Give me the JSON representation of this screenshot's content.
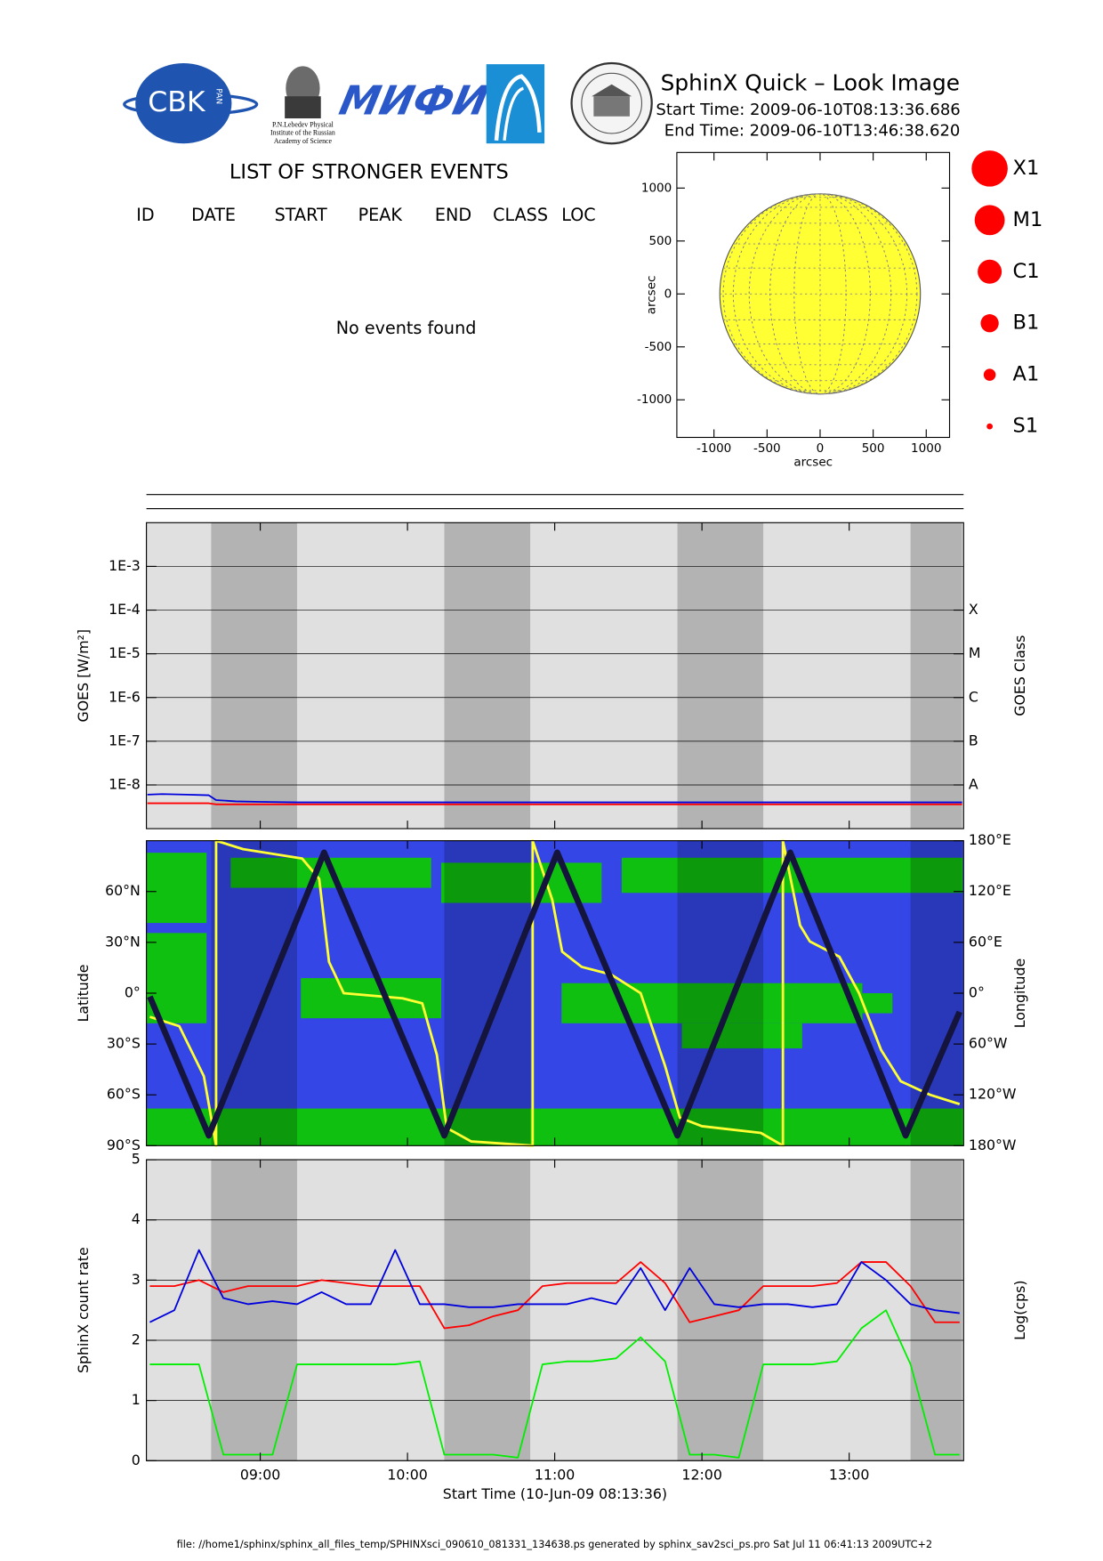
{
  "header": {
    "title": "SphinX Quick – Look Image",
    "start_time": "Start Time: 2009-06-10T08:13:36.686",
    "end_time": "End Time: 2009-06-10T13:46:38.620"
  },
  "logos": {
    "cbk": "CBK",
    "pan": "PAN",
    "lebedev": [
      "P.N.Lebedev Physical",
      "Institute of the Russian",
      "Academy of Science"
    ],
    "mifi": "МИФИ"
  },
  "events": {
    "title": "LIST OF STRONGER EVENTS",
    "columns": [
      "ID",
      "DATE",
      "START",
      "PEAK",
      "END",
      "CLASS",
      "LOC"
    ],
    "message": "No events found"
  },
  "footer": "file: //home1/sphinx/sphinx_all_files_temp/SPHINXsci_090610_081331_134638.ps generated by sphinx_sav2sci_ps.pro Sat Jul 11 06:41:13 2009UTC+2",
  "night": [
    [
      "08:40",
      "09:15"
    ],
    [
      "10:15",
      "10:50"
    ],
    [
      "11:50",
      "12:25"
    ],
    [
      "13:25",
      "13:46"
    ]
  ],
  "chart_data": [
    {
      "type": "disk",
      "radius": 945,
      "color": "#ffff33",
      "xlim": [
        -1350,
        1220
      ],
      "ylim": [
        -1355,
        1336
      ],
      "xticks": [
        -1000,
        -500,
        0,
        500,
        1000
      ],
      "yticks": [
        -1000,
        -500,
        0,
        500,
        1000
      ],
      "xlabel": "arcsec",
      "ylabel": "arcsec"
    },
    {
      "type": "legend",
      "categories": [
        "X1",
        "M1",
        "C1",
        "B1",
        "A1",
        "S1"
      ],
      "color": "#ff0000"
    },
    {
      "type": "line",
      "log": true,
      "background": "#e0e0e0",
      "grid": true,
      "xlim": [
        "08:13:36",
        "13:46:38"
      ],
      "xticks": [
        "09:00",
        "10:00",
        "11:00",
        "12:00",
        "13:00"
      ],
      "ylim": [
        1e-09,
        0.01
      ],
      "yticks": [
        {
          "value": 1e-08,
          "label": "1E-8"
        },
        {
          "value": 1e-07,
          "label": "1E-7"
        },
        {
          "value": 1e-06,
          "label": "1E-6"
        },
        {
          "value": 1e-05,
          "label": "1E-5"
        },
        {
          "value": 0.0001,
          "label": "1E-4"
        },
        {
          "value": 0.001,
          "label": "1E-3"
        }
      ],
      "y2lim": [
        1e-09,
        0.01
      ],
      "y2ticks": [
        {
          "value": 1e-08,
          "label": "A"
        },
        {
          "value": 1e-07,
          "label": "B"
        },
        {
          "value": 1e-06,
          "label": "C"
        },
        {
          "value": 1e-05,
          "label": "M"
        },
        {
          "value": 0.0001,
          "label": "X"
        }
      ],
      "ylabel": "GOES [W/m²]",
      "y2label": "GOES Class",
      "x": [
        "08:14",
        "08:20",
        "08:30",
        "08:39",
        "08:42",
        "08:50",
        "09:00",
        "09:15",
        "09:30",
        "10:00",
        "10:30",
        "11:00",
        "11:30",
        "12:00",
        "12:30",
        "13:00",
        "13:30",
        "13:46"
      ],
      "series": [
        {
          "color": "#0000dd",
          "values": [
            6e-09,
            6.2e-09,
            6e-09,
            5.8e-09,
            4.5e-09,
            4.2e-09,
            4.1e-09,
            4e-09,
            4e-09,
            4e-09,
            4e-09,
            4e-09,
            4e-09,
            4e-09,
            4e-09,
            4e-09,
            4e-09,
            4e-09
          ]
        },
        {
          "color": "#ff0000",
          "values": [
            3.8e-09,
            3.8e-09,
            3.8e-09,
            3.8e-09,
            3.6e-09,
            3.6e-09,
            3.6e-09,
            3.6e-09,
            3.6e-09,
            3.6e-09,
            3.6e-09,
            3.6e-09,
            3.6e-09,
            3.6e-09,
            3.6e-09,
            3.6e-09,
            3.6e-09,
            3.6e-09
          ]
        }
      ]
    },
    {
      "type": "track",
      "background": "#3446e6",
      "grid": false,
      "xlim": [
        "08:13:36",
        "13:46:38"
      ],
      "xticks": [
        "09:00",
        "10:00",
        "11:00",
        "12:00",
        "13:00"
      ],
      "ylim": [
        -90,
        90
      ],
      "yticks": [
        {
          "value": -90,
          "label": "90°S"
        },
        {
          "value": -60,
          "label": "60°S"
        },
        {
          "value": -30,
          "label": "30°S"
        },
        {
          "value": 0,
          "label": "0°"
        },
        {
          "value": 30,
          "label": "30°N"
        },
        {
          "value": 60,
          "label": "60°N"
        }
      ],
      "y2lim": [
        -180,
        180
      ],
      "y2ticks": [
        {
          "value": -180,
          "label": "180°W"
        },
        {
          "value": -120,
          "label": "120°W"
        },
        {
          "value": -60,
          "label": "60°W"
        },
        {
          "value": 0,
          "label": "0°"
        },
        {
          "value": 60,
          "label": "60°E"
        },
        {
          "value": 120,
          "label": "120°E"
        },
        {
          "value": 180,
          "label": "180°E"
        }
      ],
      "ylabel": "Latitude",
      "y2label": "Longitude",
      "series": [
        {
          "color": "#ffff33",
          "axis": "y2",
          "x": [
            "08:15",
            "08:27",
            "08:37",
            "08:42",
            "08:42",
            "08:53",
            "09:17",
            "09:24",
            "09:28",
            "09:34",
            "09:58",
            "10:06",
            "10:12",
            "10:16",
            "10:26",
            "10:51",
            "10:51",
            "10:59",
            "11:03",
            "11:11",
            "11:23",
            "11:35",
            "11:45",
            "11:51",
            "12:00",
            "12:24",
            "12:33",
            "12:33",
            "12:40",
            "12:44",
            "12:56",
            "13:04",
            "13:13",
            "13:21",
            "13:33",
            "13:45"
          ],
          "values": [
            -28,
            -39,
            -98,
            -180,
            180,
            170,
            159,
            135,
            37,
            0,
            -6,
            -12,
            -73,
            -159,
            -175,
            -180,
            180,
            110,
            49,
            31,
            22,
            0,
            -86,
            -147,
            -157,
            -165,
            -180,
            180,
            80,
            61,
            43,
            0,
            -67,
            -104,
            -120,
            -131
          ]
        },
        {
          "color": "#14143c",
          "axis": "y",
          "x": [
            "08:15",
            "08:39",
            "09:26",
            "10:15",
            "11:01",
            "11:50",
            "12:36",
            "13:23",
            "13:45"
          ],
          "values": [
            -2,
            -84,
            83,
            -84,
            83,
            -84,
            83,
            -84,
            -11
          ]
        }
      ]
    },
    {
      "type": "line",
      "background": "#e0e0e0",
      "grid": true,
      "xlim": [
        "08:13:36",
        "13:46:38"
      ],
      "xticks": [
        "09:00",
        "10:00",
        "11:00",
        "12:00",
        "13:00"
      ],
      "ylim": [
        0,
        5
      ],
      "yticks": [
        0,
        1,
        2,
        3,
        4,
        5
      ],
      "ylabel": "SphinX count rate",
      "y2label": "Log(cps)",
      "xlabel": "Start Time (10-Jun-09 08:13:36)",
      "x": [
        "08:15",
        "08:25",
        "08:35",
        "08:45",
        "08:55",
        "09:05",
        "09:15",
        "09:25",
        "09:35",
        "09:45",
        "09:55",
        "10:05",
        "10:15",
        "10:25",
        "10:35",
        "10:45",
        "10:55",
        "11:05",
        "11:15",
        "11:25",
        "11:35",
        "11:45",
        "11:55",
        "12:05",
        "12:15",
        "12:25",
        "12:35",
        "12:45",
        "12:55",
        "13:05",
        "13:15",
        "13:25",
        "13:35",
        "13:45"
      ],
      "series": [
        {
          "color": "#00ee00",
          "values": [
            1.6,
            1.6,
            1.6,
            0.1,
            0.1,
            0.1,
            1.6,
            1.6,
            1.6,
            1.6,
            1.6,
            1.65,
            0.1,
            0.1,
            0.1,
            0.05,
            1.6,
            1.65,
            1.65,
            1.7,
            2.05,
            1.65,
            0.1,
            0.1,
            0.05,
            1.6,
            1.6,
            1.6,
            1.65,
            2.2,
            2.5,
            1.6,
            0.1,
            0.1
          ]
        },
        {
          "color": "#ff0000",
          "values": [
            2.9,
            2.9,
            3.0,
            2.8,
            2.9,
            2.9,
            2.9,
            3.0,
            2.95,
            2.9,
            2.9,
            2.9,
            2.2,
            2.25,
            2.4,
            2.5,
            2.9,
            2.95,
            2.95,
            2.95,
            3.3,
            2.95,
            2.3,
            2.4,
            2.5,
            2.9,
            2.9,
            2.9,
            2.95,
            3.3,
            3.3,
            2.9,
            2.3,
            2.3
          ]
        },
        {
          "color": "#0000dd",
          "values": [
            2.3,
            2.5,
            3.5,
            2.7,
            2.6,
            2.65,
            2.6,
            2.8,
            2.6,
            2.6,
            3.5,
            2.6,
            2.6,
            2.55,
            2.55,
            2.6,
            2.6,
            2.6,
            2.7,
            2.6,
            3.2,
            2.5,
            3.2,
            2.6,
            2.55,
            2.6,
            2.6,
            2.55,
            2.6,
            3.3,
            3.0,
            2.6,
            2.5,
            2.45
          ]
        }
      ]
    }
  ]
}
